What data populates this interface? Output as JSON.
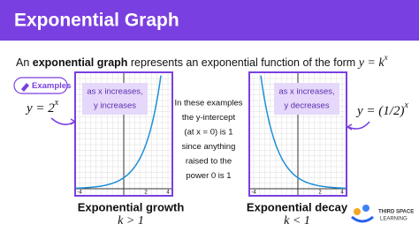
{
  "header": {
    "title": "Exponential Graph"
  },
  "intro": {
    "before": "An ",
    "bold": "exponential graph",
    "after": " represents an exponential function of the form ",
    "formula": "y = k",
    "formula_exp": "x"
  },
  "examples_tag": "Examples",
  "growth": {
    "formula": "y = 2",
    "formula_exp": "x",
    "note": [
      "as x increases,",
      "y increases"
    ],
    "ticks": [
      -4,
      2,
      4
    ],
    "caption": "Exponential growth",
    "condition": "k > 1"
  },
  "decay": {
    "formula": "y = (1/2)",
    "formula_exp": "x",
    "note": [
      "as x increases,",
      "y decreases"
    ],
    "ticks": [
      -4,
      2,
      4
    ],
    "caption": "Exponential decay",
    "condition": "k < 1"
  },
  "middle": [
    "In these examples",
    "the y-intercept",
    "(at x = 0) is 1",
    "since anything",
    "raised to the",
    "power 0 is 1"
  ],
  "logo": [
    "THIRD SPACE",
    "LEARNING"
  ]
}
